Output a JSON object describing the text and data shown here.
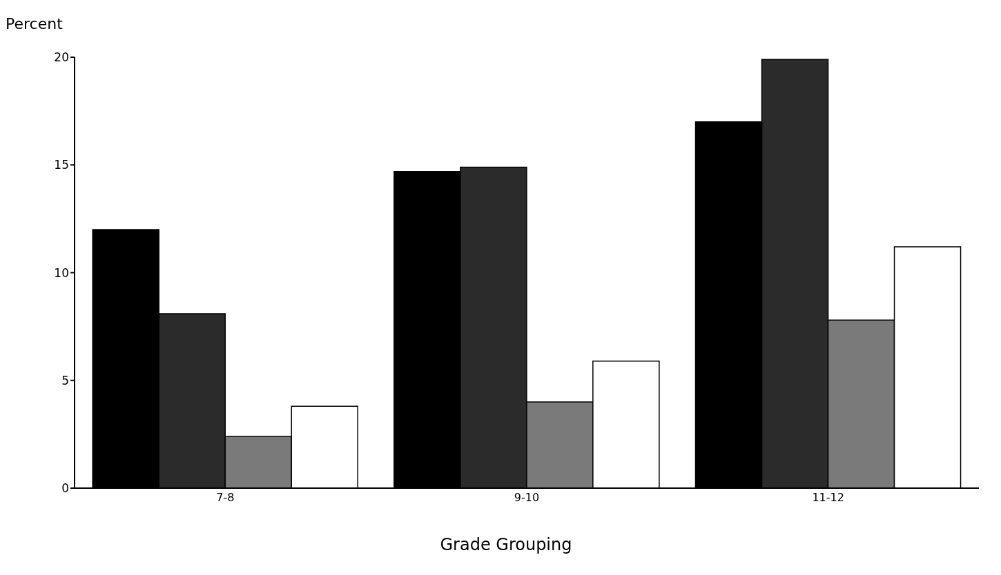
{
  "chart_data": {
    "type": "bar",
    "ylabel": "Percent",
    "xlabel": "Grade Grouping",
    "categories": [
      "7-8",
      "9-10",
      "11-12"
    ],
    "series": [
      {
        "color": "#000000",
        "values": [
          12,
          14.7,
          17
        ]
      },
      {
        "color": "#2b2b2b",
        "values": [
          8.1,
          14.9,
          19.9
        ]
      },
      {
        "color": "#7a7a7a",
        "values": [
          2.4,
          4,
          7.8
        ]
      },
      {
        "color": "#ffffff",
        "values": [
          3.8,
          5.9,
          11.2
        ]
      }
    ],
    "ylim": [
      0,
      20
    ],
    "yticks": [
      0,
      5,
      10,
      15,
      20
    ],
    "grid": false,
    "legend": false
  }
}
